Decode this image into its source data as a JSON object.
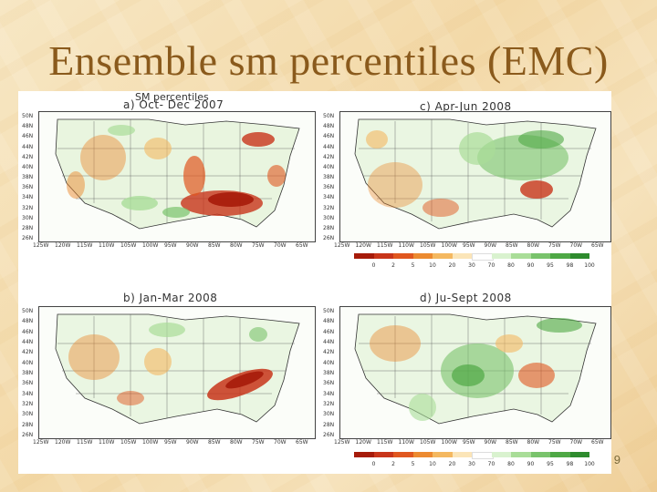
{
  "title": "Ensemble sm percentiles (EMC)",
  "figure_title": "SM percentiles",
  "panels": [
    {
      "id": "a",
      "label": "a)  Oct- Dec 2007"
    },
    {
      "id": "c",
      "label": "c)  Apr-Jun 2008"
    },
    {
      "id": "b",
      "label": "b)  Jan-Mar 2008"
    },
    {
      "id": "d",
      "label": "d)  Ju-Sept 2008"
    }
  ],
  "lat_labels": [
    "50N",
    "48N",
    "46N",
    "44N",
    "42N",
    "40N",
    "38N",
    "36N",
    "34N",
    "32N",
    "30N",
    "28N",
    "26N"
  ],
  "lon_labels": [
    "125W",
    "120W",
    "115W",
    "110W",
    "105W",
    "100W",
    "95W",
    "90W",
    "85W",
    "80W",
    "75W",
    "70W",
    "65W"
  ],
  "colorbar": {
    "labels": [
      "0",
      "2",
      "5",
      "10",
      "20",
      "30",
      "70",
      "80",
      "90",
      "95",
      "98",
      "100"
    ],
    "colors": [
      "#a61b0a",
      "#c8351a",
      "#e0571f",
      "#ec8a30",
      "#f4b860",
      "#fbe5b8",
      "#ffffff",
      "#d9f2cf",
      "#a9dd98",
      "#79c36c",
      "#4ea845",
      "#2e8b2e"
    ]
  },
  "page_number": "9"
}
